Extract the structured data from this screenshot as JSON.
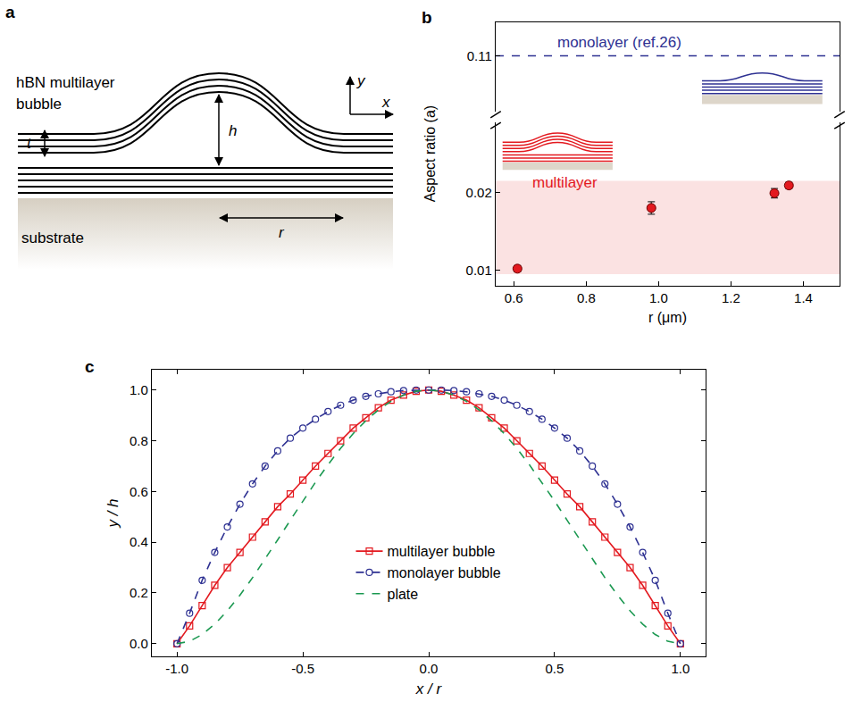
{
  "diagram": {
    "panel": "a",
    "label_lines": [
      "hBN multilayer",
      "bubble"
    ],
    "dimensions": {
      "thickness": "t",
      "height": "h",
      "radius": "r"
    },
    "axes": {
      "x": "x",
      "y": "y"
    },
    "substrate": "substrate"
  },
  "chart_data": [
    {
      "panel": "b",
      "type": "scatter",
      "xlabel": "r (μm)",
      "ylabel": "Aspect ratio (a)",
      "x": [
        0.61,
        0.98,
        1.32,
        1.36
      ],
      "xlim": [
        0.55,
        1.5
      ],
      "xticks": [
        0.6,
        0.8,
        {
          "value": 1,
          "label": "1.0"
        },
        1.2,
        1.4
      ],
      "ylim": [
        0.008,
        0.029
      ],
      "yticks": [
        0.01,
        0.02
      ],
      "y2lim": [
        0.1,
        0.116
      ],
      "y2ticks": [
        0.11
      ],
      "band": [
        0.0095,
        0.0215
      ],
      "series": [
        {
          "name": "multilayer",
          "color": "#e3191f",
          "marker": "circle",
          "values": [
            0.0102,
            0.018,
            0.0199,
            0.0209
          ],
          "errors": [
            0.0004,
            0.0008,
            0.0006,
            0.0004
          ]
        },
        {
          "name": "monolayer (ref.26)",
          "color": "#2e3192",
          "type": "line",
          "line_style": "dashed",
          "axis": "y2",
          "x": [
            0.55,
            1.5
          ],
          "values": [
            0.11,
            0.11
          ]
        }
      ]
    },
    {
      "panel": "c",
      "type": "line",
      "xlabel": "x / r",
      "ylabel": "y / h",
      "xlim": [
        -1.1,
        1.1
      ],
      "xticks": [
        {
          "value": -1,
          "label": "-1.0"
        },
        -0.5,
        {
          "value": 0,
          "label": "0.0"
        },
        0.5,
        {
          "value": 1,
          "label": "1.0"
        }
      ],
      "ylim": [
        -0.05,
        1.08
      ],
      "yticks": [
        {
          "value": 0,
          "label": "0.0"
        },
        0.2,
        0.4,
        0.6,
        0.8,
        {
          "value": 1,
          "label": "1.0"
        }
      ],
      "legend": "center",
      "x": [
        -1,
        -0.95,
        -0.9,
        -0.85,
        -0.8,
        -0.75,
        -0.7,
        -0.65,
        -0.6,
        -0.55,
        -0.5,
        -0.45,
        -0.4,
        -0.35,
        -0.3,
        -0.25,
        -0.2,
        -0.15,
        -0.1,
        -0.05,
        0,
        0.05,
        0.1,
        0.15,
        0.2,
        0.25,
        0.3,
        0.35,
        0.4,
        0.45,
        0.5,
        0.55,
        0.6,
        0.65,
        0.7,
        0.75,
        0.8,
        0.85,
        0.9,
        0.95,
        1
      ],
      "series": [
        {
          "name": "multilayer bubble",
          "color": "#e3191f",
          "marker": "square-open",
          "line_style": "solid",
          "values": [
            0.0,
            0.07,
            0.15,
            0.23,
            0.3,
            0.36,
            0.42,
            0.48,
            0.54,
            0.59,
            0.645,
            0.7,
            0.75,
            0.8,
            0.85,
            0.89,
            0.93,
            0.96,
            0.98,
            0.995,
            1.0,
            0.995,
            0.98,
            0.96,
            0.93,
            0.89,
            0.85,
            0.8,
            0.75,
            0.7,
            0.645,
            0.59,
            0.54,
            0.48,
            0.42,
            0.36,
            0.3,
            0.23,
            0.15,
            0.07,
            0.0
          ]
        },
        {
          "name": "monolayer bubble",
          "color": "#2e3192",
          "marker": "circle-open",
          "line_style": "dashed",
          "values": [
            0.0,
            0.12,
            0.25,
            0.36,
            0.46,
            0.55,
            0.63,
            0.7,
            0.76,
            0.81,
            0.85,
            0.885,
            0.915,
            0.94,
            0.96,
            0.975,
            0.985,
            0.993,
            0.998,
            1.0,
            1.0,
            1.0,
            0.998,
            0.993,
            0.985,
            0.975,
            0.96,
            0.94,
            0.915,
            0.885,
            0.85,
            0.81,
            0.76,
            0.7,
            0.63,
            0.55,
            0.46,
            0.36,
            0.25,
            0.12,
            0.0
          ]
        },
        {
          "name": "plate",
          "color": "#1a9850",
          "line_style": "dashed",
          "values": [
            0,
            0.0095,
            0.0361,
            0.077,
            0.1296,
            0.1914,
            0.2601,
            0.3335,
            0.4096,
            0.4865,
            0.5625,
            0.636,
            0.7056,
            0.77,
            0.8281,
            0.8789,
            0.9216,
            0.9555,
            0.9801,
            0.995,
            1,
            0.995,
            0.9801,
            0.9555,
            0.9216,
            0.8789,
            0.8281,
            0.77,
            0.7056,
            0.636,
            0.5625,
            0.4865,
            0.4096,
            0.3335,
            0.2601,
            0.1914,
            0.1296,
            0.077,
            0.0361,
            0.0095,
            0
          ]
        }
      ]
    }
  ]
}
